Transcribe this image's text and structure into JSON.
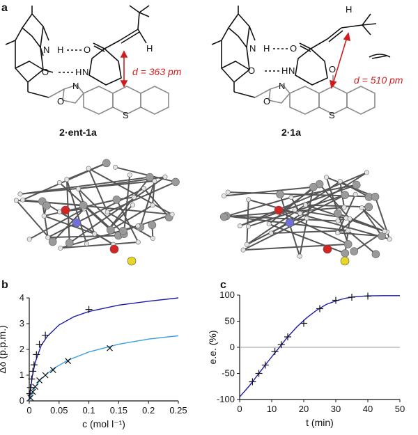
{
  "panel_a": {
    "label": "a",
    "left": {
      "compound_label": "2·ent-1a",
      "distance": "d = 363 pm"
    },
    "right": {
      "compound_label": "2·1a",
      "distance": "d = 510 pm"
    }
  },
  "atom_labels": {
    "N": "N",
    "O": "O",
    "S": "S",
    "H": "H"
  },
  "chart_data": [
    {
      "panel": "b",
      "type": "scatter",
      "xlabel": "c (mol l⁻¹)",
      "ylabel": "Δδ (p.p.m.)",
      "xlim": [
        0,
        0.25
      ],
      "ylim": [
        0,
        4
      ],
      "xticks": [
        "0",
        "0.05",
        "0.1",
        "0.15",
        "0.2",
        "0.25"
      ],
      "yticks": [
        "0",
        "1",
        "2",
        "3",
        "4"
      ],
      "series": [
        {
          "marker": "+",
          "color": "#1a1aa8",
          "points": [
            [
              0.001,
              0.28
            ],
            [
              0.002,
              0.52
            ],
            [
              0.004,
              0.85
            ],
            [
              0.006,
              1.15
            ],
            [
              0.008,
              1.4
            ],
            [
              0.012,
              1.8
            ],
            [
              0.017,
              2.2
            ],
            [
              0.027,
              2.55
            ],
            [
              0.1,
              3.55
            ]
          ],
          "fit": [
            [
              0,
              0
            ],
            [
              0.005,
              0.95
            ],
            [
              0.01,
              1.5
            ],
            [
              0.02,
              2.15
            ],
            [
              0.03,
              2.5
            ],
            [
              0.05,
              2.95
            ],
            [
              0.075,
              3.27
            ],
            [
              0.1,
              3.47
            ],
            [
              0.15,
              3.72
            ],
            [
              0.2,
              3.87
            ],
            [
              0.25,
              4.0
            ]
          ]
        },
        {
          "marker": "x",
          "color": "#3aa0e0",
          "points": [
            [
              0.002,
              0.12
            ],
            [
              0.006,
              0.35
            ],
            [
              0.01,
              0.55
            ],
            [
              0.017,
              0.8
            ],
            [
              0.027,
              1.0
            ],
            [
              0.04,
              1.2
            ],
            [
              0.065,
              1.55
            ],
            [
              0.135,
              2.05
            ]
          ],
          "fit": [
            [
              0,
              0
            ],
            [
              0.005,
              0.3
            ],
            [
              0.01,
              0.55
            ],
            [
              0.02,
              0.85
            ],
            [
              0.04,
              1.25
            ],
            [
              0.065,
              1.58
            ],
            [
              0.1,
              1.9
            ],
            [
              0.15,
              2.2
            ],
            [
              0.2,
              2.4
            ],
            [
              0.25,
              2.53
            ]
          ]
        }
      ]
    },
    {
      "panel": "c",
      "type": "scatter",
      "xlabel": "t (min)",
      "ylabel": "e.e. (%)",
      "xlim": [
        0,
        50
      ],
      "ylim": [
        -100,
        100
      ],
      "xticks": [
        "0",
        "10",
        "20",
        "30",
        "40",
        "50"
      ],
      "yticks": [
        "-100",
        "-50",
        "0",
        "50",
        "100"
      ],
      "series": [
        {
          "marker": "+",
          "color": "#1a1aa8",
          "points": [
            [
              4,
              -66
            ],
            [
              6,
              -50
            ],
            [
              8,
              -34
            ],
            [
              11,
              -8
            ],
            [
              13,
              5
            ],
            [
              15,
              20
            ],
            [
              20,
              46
            ],
            [
              25,
              74
            ],
            [
              30,
              90
            ],
            [
              35,
              96
            ],
            [
              40,
              98
            ]
          ],
          "fit": [
            [
              0,
              -95
            ],
            [
              3,
              -74
            ],
            [
              6,
              -50
            ],
            [
              9,
              -26
            ],
            [
              12,
              -3
            ],
            [
              15,
              20
            ],
            [
              18,
              40
            ],
            [
              21,
              57
            ],
            [
              24,
              71
            ],
            [
              27,
              82
            ],
            [
              30,
              89
            ],
            [
              33,
              94
            ],
            [
              36,
              97
            ],
            [
              40,
              98.5
            ],
            [
              45,
              99
            ],
            [
              50,
              99
            ]
          ]
        }
      ]
    }
  ]
}
